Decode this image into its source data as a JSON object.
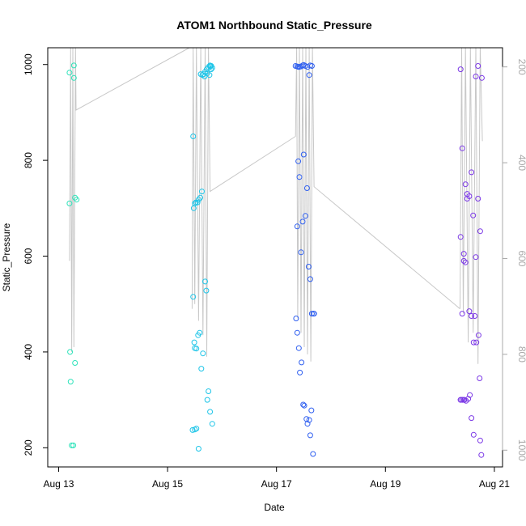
{
  "chart_data": {
    "type": "scatter",
    "title": "ATOM1 Northbound Static_Pressure",
    "xlabel": "Date",
    "ylabel": "Static_Pressure",
    "x_unit": "day_of_august",
    "x_ticks": [
      {
        "label": "Aug 13",
        "value": 13
      },
      {
        "label": "Aug 15",
        "value": 15
      },
      {
        "label": "Aug 17",
        "value": 17
      },
      {
        "label": "Aug 19",
        "value": 19
      },
      {
        "label": "Aug 21",
        "value": 21
      }
    ],
    "y_ticks": [
      200,
      400,
      600,
      800,
      1000
    ],
    "xlim": [
      12.8,
      21.15
    ],
    "ylim": [
      160,
      1035
    ],
    "right_axis": {
      "color": "#a8a8a8",
      "ticks": [
        200,
        400,
        600,
        800,
        1000
      ],
      "ylim": [
        1035,
        160
      ],
      "reversed": true
    },
    "line_color": "#c8c8c8",
    "profile_tracks": [
      {
        "start": [
          13.2,
          590
        ],
        "path": [
          [
            13.22,
            1035
          ],
          [
            13.24,
            400
          ],
          [
            13.26,
            1035
          ],
          [
            13.28,
            410
          ],
          [
            13.31,
            1035
          ],
          [
            13.32,
            905
          ],
          [
            15.4,
            1035
          ]
        ]
      },
      {
        "path": [
          [
            15.45,
            490
          ],
          [
            15.47,
            1035
          ],
          [
            15.5,
            500
          ],
          [
            15.53,
            1035
          ],
          [
            15.57,
            465
          ],
          [
            15.61,
            1035
          ],
          [
            15.65,
            435
          ],
          [
            15.69,
            1035
          ],
          [
            15.72,
            390
          ],
          [
            15.75,
            1035
          ],
          [
            15.78,
            735
          ],
          [
            17.35,
            850
          ]
        ]
      },
      {
        "path": [
          [
            17.35,
            850
          ],
          [
            17.37,
            1035
          ],
          [
            17.39,
            470
          ],
          [
            17.42,
            1035
          ],
          [
            17.45,
            440
          ],
          [
            17.48,
            1035
          ],
          [
            17.51,
            410
          ],
          [
            17.54,
            1035
          ],
          [
            17.57,
            395
          ],
          [
            17.6,
            1035
          ],
          [
            17.63,
            380
          ],
          [
            17.66,
            1035
          ],
          [
            17.69,
            745
          ],
          [
            20.37,
            490
          ]
        ]
      },
      {
        "path": [
          [
            20.37,
            490
          ],
          [
            20.4,
            1035
          ],
          [
            20.43,
            480
          ],
          [
            20.47,
            1035
          ],
          [
            20.52,
            420
          ],
          [
            20.56,
            1035
          ],
          [
            20.61,
            440
          ],
          [
            20.66,
            1035
          ],
          [
            20.7,
            375
          ],
          [
            20.74,
            1035
          ],
          [
            20.78,
            840
          ]
        ]
      }
    ],
    "series": [
      {
        "color": "#2de3ba",
        "x": [
          13.2,
          13.2,
          13.21,
          13.22,
          13.24,
          13.27,
          13.3,
          13.33,
          13.28,
          13.3,
          13.28
        ],
        "y": [
          983,
          710,
          400,
          338,
          205,
          205,
          377,
          718,
          998,
          722,
          972
        ]
      },
      {
        "color": "#1ec5e8",
        "x": [
          15.47,
          15.48,
          15.5,
          15.52,
          15.55,
          15.57,
          15.6,
          15.63,
          15.66,
          15.69,
          15.72,
          15.75,
          15.78,
          15.8,
          15.47,
          15.49,
          15.5,
          15.53,
          15.56,
          15.59,
          15.62,
          15.65,
          15.69,
          15.71,
          15.73,
          15.75,
          15.78,
          15.82,
          15.46,
          15.5,
          15.53,
          15.57,
          15.61,
          15.64,
          15.68,
          15.73,
          15.77,
          15.8,
          15.82,
          15.78,
          15.8
        ],
        "y": [
          850,
          700,
          710,
          712,
          712,
          718,
          722,
          735,
          980,
          985,
          990,
          995,
          998,
          997,
          515,
          420,
          408,
          407,
          435,
          440,
          365,
          397,
          547,
          528,
          300,
          318,
          275,
          250,
          237,
          238,
          240,
          198,
          980,
          978,
          975,
          982,
          978,
          990,
          993,
          996,
          997
        ]
      },
      {
        "color": "#2f5ff0",
        "x": [
          17.35,
          17.38,
          17.4,
          17.42,
          17.45,
          17.48,
          17.5,
          17.53,
          17.57,
          17.6,
          17.62,
          17.65,
          17.38,
          17.4,
          17.42,
          17.45,
          17.48,
          17.5,
          17.53,
          17.56,
          17.59,
          17.62,
          17.65,
          17.68,
          17.36,
          17.38,
          17.41,
          17.43,
          17.46,
          17.49,
          17.51,
          17.55,
          17.57,
          17.6,
          17.62,
          17.64,
          17.67,
          17.69
        ],
        "y": [
          997,
          996,
          995,
          995,
          996,
          998,
          999,
          997,
          995,
          978,
          998,
          997,
          662,
          798,
          765,
          608,
          672,
          812,
          684,
          742,
          578,
          552,
          480,
          480,
          470,
          440,
          408,
          357,
          378,
          290,
          288,
          260,
          250,
          258,
          226,
          278,
          187,
          480
        ]
      },
      {
        "color": "#7b38e6",
        "x": [
          20.38,
          20.41,
          20.44,
          20.47,
          20.5,
          20.54,
          20.58,
          20.61,
          20.64,
          20.67,
          20.71,
          20.73,
          20.76,
          20.38,
          20.41,
          20.44,
          20.47,
          20.5,
          20.54,
          20.58,
          20.62,
          20.66,
          20.7,
          20.74,
          20.38,
          20.41,
          20.45,
          20.48,
          20.52,
          20.55,
          20.58,
          20.62,
          20.66,
          20.7,
          20.74,
          20.77,
          20.38,
          20.41,
          20.44
        ],
        "y": [
          990,
          825,
          605,
          750,
          720,
          725,
          775,
          685,
          475,
          420,
          435,
          345,
          185,
          640,
          480,
          590,
          587,
          730,
          485,
          262,
          227,
          975,
          997,
          215,
          300,
          300,
          300,
          298,
          302,
          310,
          475,
          420,
          598,
          720,
          652,
          972,
          300,
          300,
          300
        ]
      }
    ]
  }
}
